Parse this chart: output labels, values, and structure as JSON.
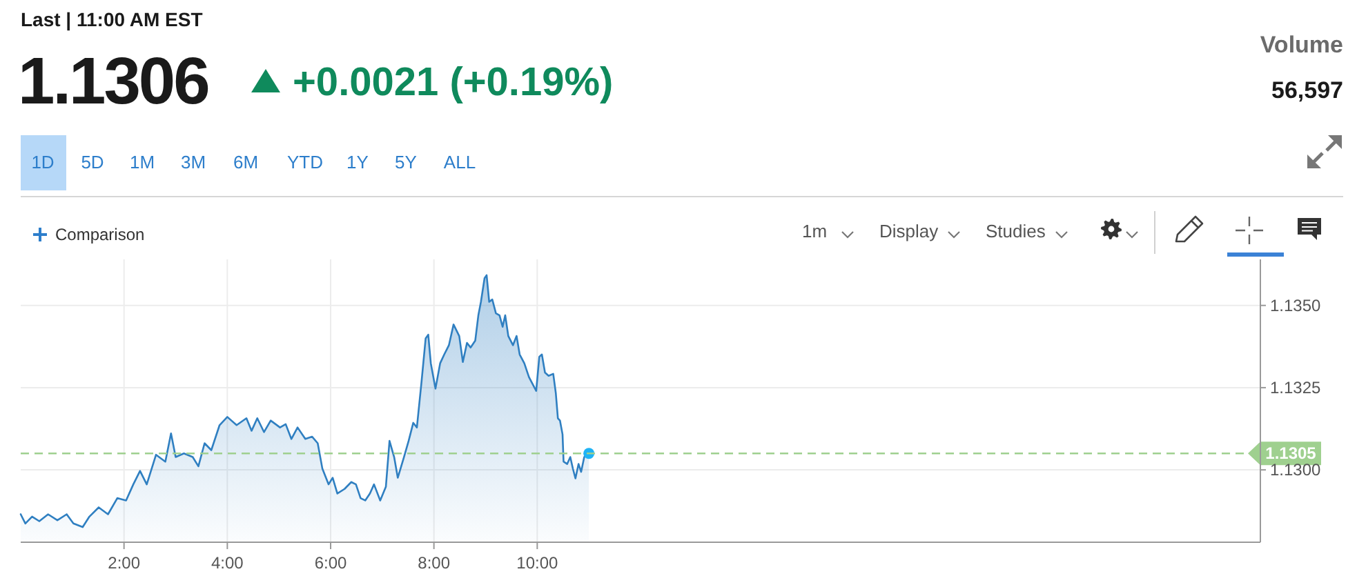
{
  "chart_data": {
    "type": "area",
    "title": "1.1306",
    "subtitle": "Last | 11:00 AM EST",
    "annotations": [
      "+0.0021 (+0.19%)",
      "Volume",
      "56,597",
      "1D",
      "5D",
      "1M",
      "3M",
      "6M",
      "YTD",
      "1Y",
      "5Y",
      "ALL",
      "Comparison",
      "1m",
      "Display",
      "Studies"
    ],
    "x": [
      0,
      0.09,
      0.22,
      0.36,
      0.53,
      0.71,
      0.89,
      1.02,
      1.2,
      1.33,
      1.51,
      1.69,
      1.87,
      2.04,
      2.18,
      2.31,
      2.44,
      2.62,
      2.8,
      2.91,
      3,
      3.16,
      3.33,
      3.44,
      3.56,
      3.69,
      3.85,
      4,
      4.18,
      4.37,
      4.47,
      4.58,
      4.71,
      4.84,
      5.02,
      5.13,
      5.24,
      5.36,
      5.51,
      5.64,
      5.75,
      5.84,
      5.96,
      6.04,
      6.13,
      6.27,
      6.4,
      6.49,
      6.58,
      6.67,
      6.76,
      6.84,
      6.96,
      7.07,
      7.14,
      7.23,
      7.3,
      7.42,
      7.51,
      7.6,
      7.67,
      7.76,
      7.84,
      7.89,
      7.94,
      8.03,
      8.12,
      8.2,
      8.29,
      8.38,
      8.49,
      8.56,
      8.64,
      8.71,
      8.8,
      8.86,
      8.91,
      8.98,
      9.02,
      9.07,
      9.13,
      9.2,
      9.27,
      9.33,
      9.38,
      9.44,
      9.53,
      9.6,
      9.66,
      9.75,
      9.84,
      9.91,
      9.98,
      10.04,
      10.09,
      10.15,
      10.22,
      10.31,
      10.36,
      10.4,
      10.44,
      10.49,
      10.51,
      10.58,
      10.64,
      10.69,
      10.74,
      10.8,
      10.85,
      10.91,
      11
    ],
    "series": [
      {
        "color": "#2f7fc1",
        "values": [
          1.12865,
          1.12837,
          1.12858,
          1.12844,
          1.12865,
          1.12847,
          1.12865,
          1.12837,
          1.12826,
          1.12858,
          1.12886,
          1.12865,
          1.12914,
          1.12907,
          1.12956,
          1.12997,
          1.12956,
          1.13046,
          1.13025,
          1.13111,
          1.13039,
          1.1305,
          1.13039,
          1.13011,
          1.13081,
          1.1306,
          1.13136,
          1.13161,
          1.13136,
          1.13157,
          1.13119,
          1.13157,
          1.13115,
          1.1315,
          1.13129,
          1.13139,
          1.13094,
          1.13129,
          1.13094,
          1.13101,
          1.13081,
          1.13004,
          1.12956,
          1.12976,
          1.12928,
          1.12942,
          1.12963,
          1.12956,
          1.12914,
          1.12907,
          1.12928,
          1.12956,
          1.12907,
          1.12949,
          1.13088,
          1.13039,
          1.12976,
          1.13039,
          1.13088,
          1.13143,
          1.13129,
          1.13268,
          1.134,
          1.13411,
          1.13324,
          1.13247,
          1.13324,
          1.13351,
          1.13379,
          1.13442,
          1.13407,
          1.13328,
          1.13386,
          1.13372,
          1.13393,
          1.1347,
          1.13511,
          1.13583,
          1.13592,
          1.13511,
          1.13518,
          1.13476,
          1.1347,
          1.13435,
          1.1347,
          1.13407,
          1.13379,
          1.13407,
          1.13351,
          1.13324,
          1.13282,
          1.13261,
          1.1324,
          1.13344,
          1.13351,
          1.13296,
          1.13286,
          1.13292,
          1.13233,
          1.13157,
          1.1315,
          1.13108,
          1.13025,
          1.13018,
          1.13039,
          1.13004,
          1.12974,
          1.13018,
          1.12994,
          1.13039,
          1.1305
        ]
      },
      {
        "type": "scatter",
        "color": "#1fb3f5",
        "x": [
          11
        ],
        "values": [
          1.1305
        ]
      }
    ],
    "xlim": [
      0,
      24
    ],
    "ylim": [
      1.1278,
      1.1364
    ],
    "xticks": [
      {
        "value": 2,
        "label": "2:00"
      },
      {
        "value": 4,
        "label": "4:00"
      },
      {
        "value": 6,
        "label": "6:00"
      },
      {
        "value": 8,
        "label": "8:00"
      },
      {
        "value": 10,
        "label": "10:00"
      }
    ],
    "yticks": [
      {
        "value": 1.13,
        "label": "1.1300"
      },
      1.1325,
      {
        "value": 1.135,
        "label": "1.1350"
      }
    ],
    "grid": true,
    "ref_lines": [
      {
        "axis": "y",
        "value": 1.1305,
        "label": "1.1305",
        "color": "#9fd08f",
        "line_style": "dashed"
      }
    ]
  }
}
